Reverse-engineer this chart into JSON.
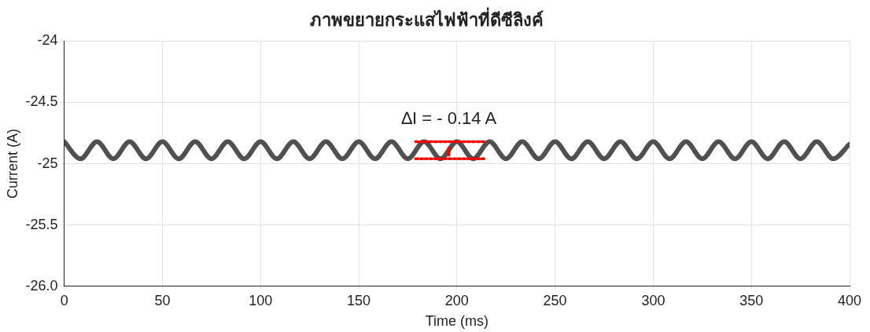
{
  "chart_data": {
    "type": "line",
    "title": "ภาพขยายกระแสไฟฟ้าที่ดีซีลิงค์",
    "xlabel": "Time (ms)",
    "ylabel": "Current (A)",
    "xlim": [
      0,
      400
    ],
    "xticks": [
      0,
      50,
      100,
      150,
      200,
      250,
      300,
      350,
      400
    ],
    "ylim": [
      -26,
      -24
    ],
    "yticks": [
      {
        "value": -26,
        "label": "-26.0"
      },
      -25.5,
      -25,
      -24.5,
      -24
    ],
    "grid": true,
    "legend": false,
    "marker": "none",
    "series": [
      {
        "color": "#505050",
        "x": [
          0,
          8.3,
          16.7,
          25,
          33.3,
          41.7,
          50,
          58.3,
          66.7,
          75,
          83.3,
          91.7,
          100,
          108.3,
          116.7,
          125,
          133.3,
          141.7,
          150,
          158.3,
          166.7,
          175,
          183.3,
          191.7,
          200,
          208.3,
          216.7,
          225,
          233.3,
          241.7,
          250,
          258.3,
          266.7,
          275,
          283.3,
          291.7,
          300,
          308.3,
          316.7,
          325,
          333.3,
          341.7,
          350,
          358.3,
          366.7,
          375,
          383.3,
          391.7,
          400
        ],
        "values": [
          -24.82,
          -24.96,
          -24.82,
          -24.96,
          -24.82,
          -24.96,
          -24.82,
          -24.96,
          -24.82,
          -24.96,
          -24.82,
          -24.96,
          -24.82,
          -24.96,
          -24.82,
          -24.96,
          -24.82,
          -24.96,
          -24.82,
          -24.96,
          -24.82,
          -24.96,
          -24.82,
          -24.96,
          -24.82,
          -24.96,
          -24.82,
          -24.96,
          -24.82,
          -24.96,
          -24.82,
          -24.96,
          -24.82,
          -24.96,
          -24.82,
          -24.96,
          -24.82,
          -24.96,
          -24.82,
          -24.96,
          -24.82,
          -24.96,
          -24.82,
          -24.96,
          -24.82,
          -24.96,
          -24.82,
          -24.96,
          -24.84
        ]
      },
      {
        "color": "#ff0000",
        "line_style": "dotted",
        "x": [
          179,
          215
        ],
        "values": [
          -24.82,
          -24.82
        ]
      },
      {
        "color": "#ff0000",
        "line_style": "dotted",
        "x": [
          179,
          215
        ],
        "values": [
          -24.96,
          -24.96
        ]
      },
      {
        "color": "#ff0000",
        "line_style": "solid",
        "x": [
          196,
          196
        ],
        "values": [
          -24.87,
          -24.93
        ]
      }
    ],
    "annotations": [
      "∆I = - 0.14 A"
    ]
  }
}
